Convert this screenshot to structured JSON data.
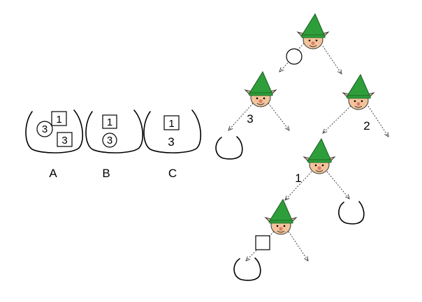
{
  "bags": [
    {
      "id": "A",
      "label": "A",
      "tokens": [
        {
          "shape": "square",
          "value": "1"
        },
        {
          "shape": "circle",
          "value": "3"
        },
        {
          "shape": "square",
          "value": "3"
        }
      ]
    },
    {
      "id": "B",
      "label": "B",
      "tokens": [
        {
          "shape": "square",
          "value": "1"
        },
        {
          "shape": "circle",
          "value": "3"
        }
      ]
    },
    {
      "id": "C",
      "label": "C",
      "tokens": [
        {
          "shape": "square",
          "value": "1"
        },
        {
          "shape": "plain",
          "value": "3"
        }
      ]
    }
  ],
  "tree_labels": {
    "left_branch": "3",
    "right_branch": "2",
    "mid_branch": "1"
  },
  "colors": {
    "hat": "#2e9e3a",
    "face": "#f2c49b",
    "nose": "#e07a6a",
    "ink": "#000000"
  },
  "icons": {
    "elf": "elf-icon",
    "bag": "bag-icon",
    "circle_token": "circle-token-icon",
    "square_token": "square-token-icon"
  }
}
